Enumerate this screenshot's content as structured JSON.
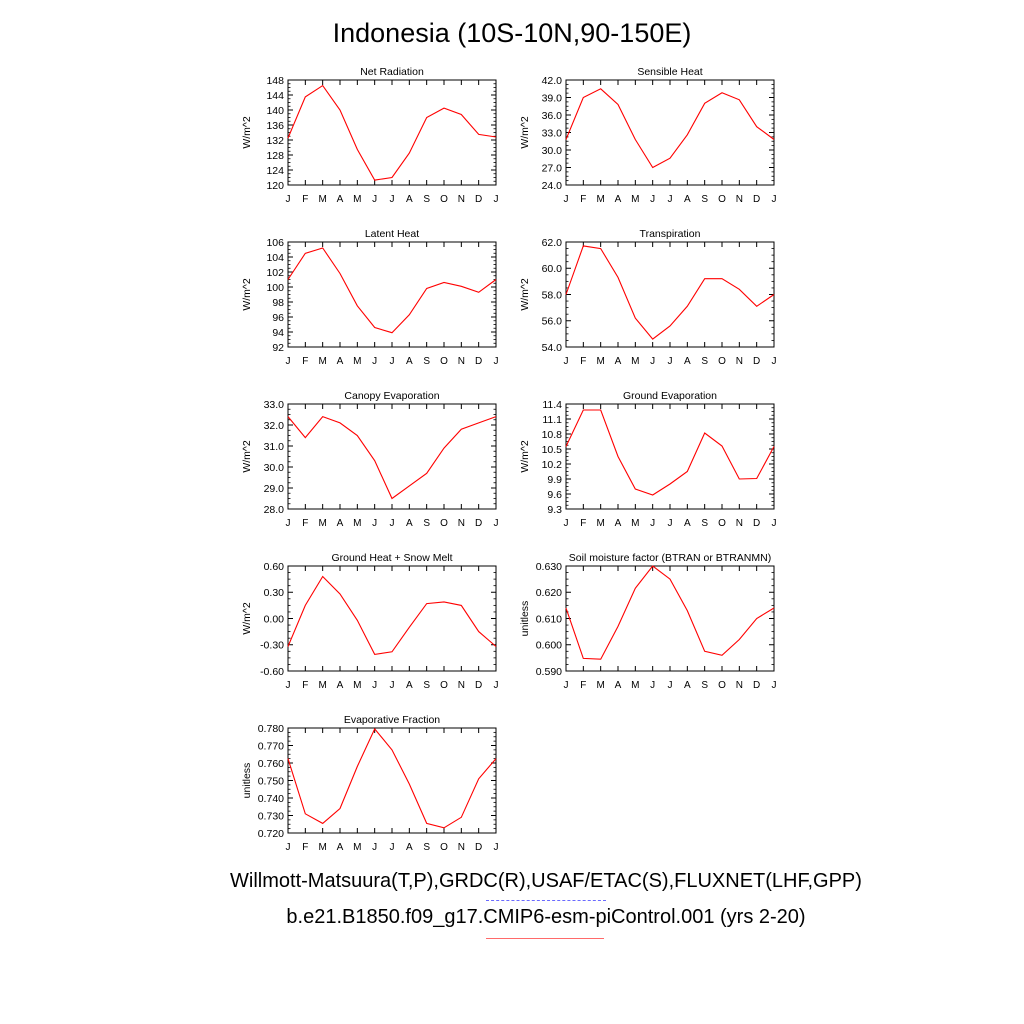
{
  "title": "Indonesia (10S-10N,90-150E)",
  "footer": {
    "observations": "Willmott-Matsuura(T,P),GRDC(R),USAF/ETAC(S),FLUXNET(LHF,GPP)",
    "model": "b.e21.B1850.f09_g17.CMIP6-esm-piControl.001 (yrs 2-20)"
  },
  "colors": {
    "model_line": "#ff0000",
    "obs_legend": "#6a6aff",
    "model_legend": "#ff6a6a"
  },
  "months": [
    "J",
    "F",
    "M",
    "A",
    "M",
    "J",
    "J",
    "A",
    "S",
    "O",
    "N",
    "D",
    "J"
  ],
  "chart_data": [
    {
      "type": "line",
      "title": "Net Radiation",
      "ylabel": "W/m^2",
      "ylim": [
        120,
        148
      ],
      "yticks": [
        "120",
        "124",
        "128",
        "132",
        "136",
        "140",
        "144",
        "148"
      ],
      "values": [
        132.5,
        143.5,
        146.5,
        140.0,
        129.5,
        121.3,
        122.0,
        128.5,
        138.0,
        140.5,
        138.8,
        133.5,
        132.8
      ]
    },
    {
      "type": "line",
      "title": "Sensible Heat",
      "ylabel": "W/m^2",
      "ylim": [
        24,
        42
      ],
      "yticks": [
        "24.0",
        "27.0",
        "30.0",
        "33.0",
        "36.0",
        "39.0",
        "42.0"
      ],
      "values": [
        31.8,
        39.0,
        40.5,
        37.8,
        31.8,
        27.0,
        28.6,
        32.6,
        38.0,
        39.8,
        38.6,
        34.0,
        31.8
      ]
    },
    {
      "type": "line",
      "title": "Latent Heat",
      "ylabel": "W/m^2",
      "ylim": [
        92,
        106
      ],
      "yticks": [
        "92",
        "94",
        "96",
        "98",
        "100",
        "102",
        "104",
        "106"
      ],
      "values": [
        101.0,
        104.5,
        105.2,
        101.8,
        97.5,
        94.6,
        93.9,
        96.3,
        99.8,
        100.6,
        100.1,
        99.3,
        101.0
      ]
    },
    {
      "type": "line",
      "title": "Transpiration",
      "ylabel": "W/m^2",
      "ylim": [
        54,
        62
      ],
      "yticks": [
        "54.0",
        "56.0",
        "58.0",
        "60.0",
        "62.0"
      ],
      "values": [
        58.0,
        61.7,
        61.5,
        59.3,
        56.2,
        54.6,
        55.6,
        57.1,
        59.2,
        59.2,
        58.4,
        57.1,
        58.0
      ]
    },
    {
      "type": "line",
      "title": "Canopy Evaporation",
      "ylabel": "W/m^2",
      "ylim": [
        28,
        33
      ],
      "yticks": [
        "28.0",
        "29.0",
        "30.0",
        "31.0",
        "32.0",
        "33.0"
      ],
      "values": [
        32.4,
        31.4,
        32.4,
        32.1,
        31.5,
        30.3,
        28.5,
        29.1,
        29.7,
        30.9,
        31.8,
        32.1,
        32.4
      ]
    },
    {
      "type": "line",
      "title": "Ground Evaporation",
      "ylabel": "W/m^2",
      "ylim": [
        9.3,
        11.4
      ],
      "yticks": [
        "9.3",
        "9.6",
        "9.9",
        "10.2",
        "10.5",
        "10.8",
        "11.1",
        "11.4"
      ],
      "values": [
        10.55,
        11.28,
        11.28,
        10.35,
        9.7,
        9.58,
        9.8,
        10.05,
        10.82,
        10.56,
        9.9,
        9.91,
        10.55
      ]
    },
    {
      "type": "line",
      "title": "Ground Heat + Snow Melt",
      "ylabel": "W/m^2",
      "ylim": [
        -0.6,
        0.6
      ],
      "yticks": [
        "-0.60",
        "-0.30",
        "0.00",
        "0.30",
        "0.60"
      ],
      "values": [
        -0.32,
        0.15,
        0.48,
        0.28,
        -0.02,
        -0.41,
        -0.38,
        -0.1,
        0.17,
        0.19,
        0.15,
        -0.15,
        -0.32
      ]
    },
    {
      "type": "line",
      "title": "Soil moisture factor (BTRAN or BTRANMN)",
      "ylabel": "unitless",
      "ylim": [
        0.59,
        0.63
      ],
      "yticks": [
        "0.590",
        "0.600",
        "0.610",
        "0.620",
        "0.630"
      ],
      "values": [
        0.614,
        0.5948,
        0.5945,
        0.607,
        0.6215,
        0.63,
        0.625,
        0.613,
        0.5975,
        0.596,
        0.602,
        0.61,
        0.614
      ]
    },
    {
      "type": "line",
      "title": "Evaporative Fraction",
      "ylabel": "unitless",
      "ylim": [
        0.72,
        0.78
      ],
      "yticks": [
        "0.720",
        "0.730",
        "0.740",
        "0.750",
        "0.760",
        "0.770",
        "0.780"
      ],
      "values": [
        0.7625,
        0.731,
        0.7255,
        0.734,
        0.758,
        0.7795,
        0.7675,
        0.748,
        0.7255,
        0.723,
        0.729,
        0.751,
        0.7625
      ]
    }
  ]
}
